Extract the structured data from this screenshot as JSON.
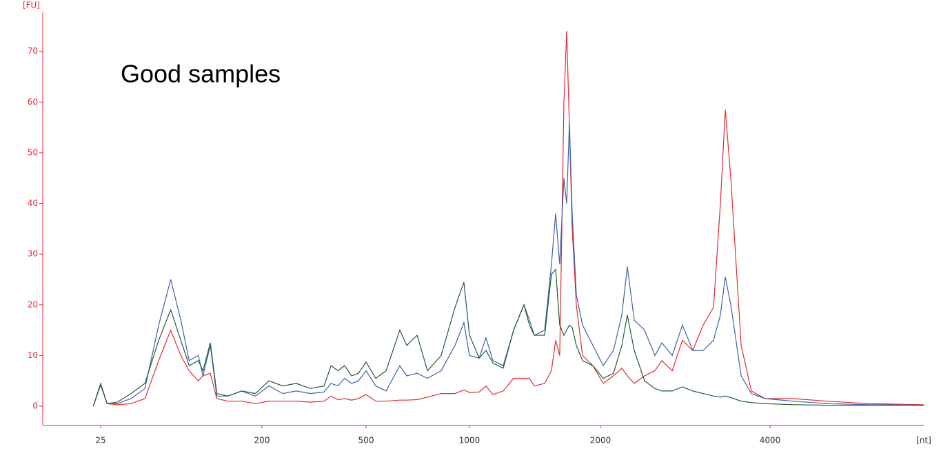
{
  "chart_data": {
    "type": "line",
    "title": "Good samples",
    "y_label": "[FU]",
    "x_label": "[nt]",
    "x": [
      17,
      25,
      32,
      43,
      58,
      73,
      88,
      101,
      112,
      121,
      131,
      136,
      144,
      151,
      163,
      178,
      193,
      220,
      260,
      299,
      339,
      379,
      399,
      419,
      438,
      458,
      478,
      500,
      547,
      597,
      663,
      697,
      747,
      797,
      863,
      930,
      973,
      1000,
      1074,
      1126,
      1179,
      1258,
      1337,
      1416,
      1458,
      1495,
      1574,
      1626,
      1658,
      1689,
      1721,
      1742,
      1763,
      1784,
      1816,
      1863,
      1942,
      2033,
      2154,
      2252,
      2317,
      2398,
      2520,
      2642,
      2724,
      2846,
      2967,
      3089,
      3211,
      3333,
      3415,
      3472,
      3537,
      3659,
      3780,
      3943,
      4268,
      4675,
      5163,
      5813
    ],
    "series": [
      {
        "color": "#e8282e",
        "values": [
          0,
          4.3,
          0.5,
          0.3,
          0.5,
          1.5,
          9,
          15,
          10,
          7,
          5,
          6,
          6.5,
          1.5,
          1,
          1,
          0.5,
          1,
          1,
          1,
          0.8,
          1,
          2,
          1.3,
          1.5,
          1.2,
          1.5,
          2.3,
          1,
          1,
          1.2,
          1.2,
          1.3,
          1.8,
          2.5,
          2.5,
          3.2,
          2.7,
          2.8,
          4,
          2.3,
          3,
          5.5,
          5.5,
          5.5,
          4,
          4.5,
          7,
          13,
          10,
          60,
          74,
          55,
          35,
          20,
          10,
          8,
          4.5,
          6,
          7.5,
          6,
          4.5,
          6,
          7,
          9,
          7,
          13,
          11,
          16,
          19.5,
          40,
          58.5,
          45,
          12,
          3,
          1.5,
          1.5,
          1,
          0.5,
          0.3
        ]
      },
      {
        "color": "#3a5fb0",
        "values": [
          0,
          4.5,
          0.5,
          0.5,
          1.5,
          3.5,
          16,
          25,
          17,
          9,
          10,
          6,
          12,
          2,
          2,
          3,
          2,
          4,
          2.5,
          3,
          2.5,
          2.8,
          4.5,
          4,
          5.5,
          4.5,
          5,
          7,
          4,
          3,
          8,
          6,
          6.5,
          5.5,
          7,
          12,
          16.5,
          10,
          9.5,
          13.5,
          9,
          8,
          15,
          20,
          17,
          14,
          15,
          28,
          38,
          28,
          45,
          40,
          56,
          38,
          22,
          16,
          12,
          8,
          11,
          18,
          27.5,
          17,
          15,
          10,
          12.5,
          10,
          16,
          11,
          11,
          13,
          18,
          25.5,
          20,
          6,
          2.5,
          1.5,
          1,
          0.5,
          0.3,
          0.2
        ]
      },
      {
        "color": "#1f5a32",
        "values": [
          0,
          4.2,
          0.5,
          0.8,
          2.5,
          4.5,
          13,
          19,
          13,
          8,
          9,
          7,
          12.5,
          2.5,
          2,
          3,
          2.5,
          5,
          4,
          4.5,
          3.5,
          4,
          8,
          7,
          8,
          6,
          6.5,
          8.7,
          5.5,
          7,
          15,
          12,
          14,
          7,
          10,
          19.5,
          24.5,
          14,
          9.5,
          11,
          8.5,
          7.5,
          15,
          20,
          16,
          14,
          14,
          26,
          27,
          16,
          14,
          15,
          16,
          15.5,
          12,
          9,
          8,
          5.5,
          6.5,
          12,
          18,
          11,
          5,
          3.5,
          3,
          3,
          3.8,
          3,
          2.5,
          2,
          1.8,
          2,
          1.7,
          1,
          0.7,
          0.5,
          0.3,
          0.2,
          0.2,
          0.2
        ]
      }
    ],
    "xlim": [
      -38,
      5813
    ],
    "xticks": [
      25,
      200,
      500,
      1000,
      2000,
      4000
    ],
    "ylim": [
      -3.8,
      77.7
    ],
    "yticks": [
      0,
      10,
      20,
      30,
      40,
      50,
      60,
      70
    ]
  }
}
